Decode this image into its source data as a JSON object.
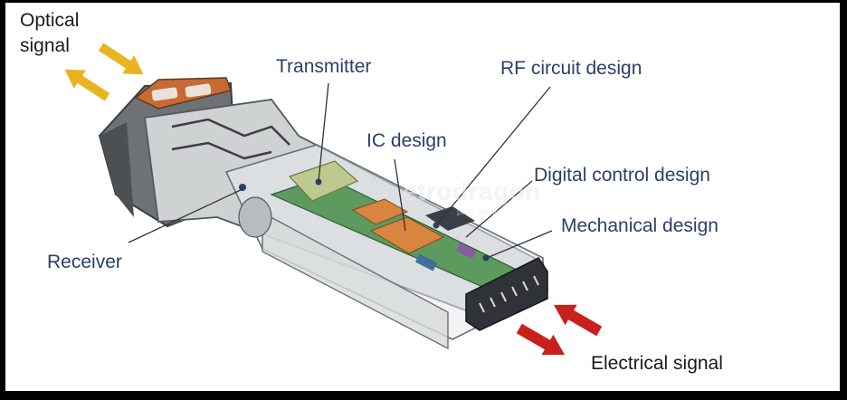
{
  "diagram": {
    "labels": {
      "optical_signal_line1": "Optical",
      "optical_signal_line2": "signal",
      "transmitter": "Transmitter",
      "rf_circuit_design": "RF circuit design",
      "ic_design": "IC design",
      "digital_control_design": "Digital control design",
      "mechanical_design": "Mechanical design",
      "receiver": "Receiver",
      "electrical_signal": "Electrical signal"
    },
    "watermark": {
      "brand": "etrodragon",
      "tagline": "parts online"
    },
    "colors": {
      "optical_arrow": "#e8b520",
      "electrical_arrow": "#c8201c",
      "label_blue": "#2a3f6b",
      "label_black": "#1a1a1a",
      "pcb_green": "#5d9a5e",
      "ic_orange": "#d9853f"
    }
  }
}
